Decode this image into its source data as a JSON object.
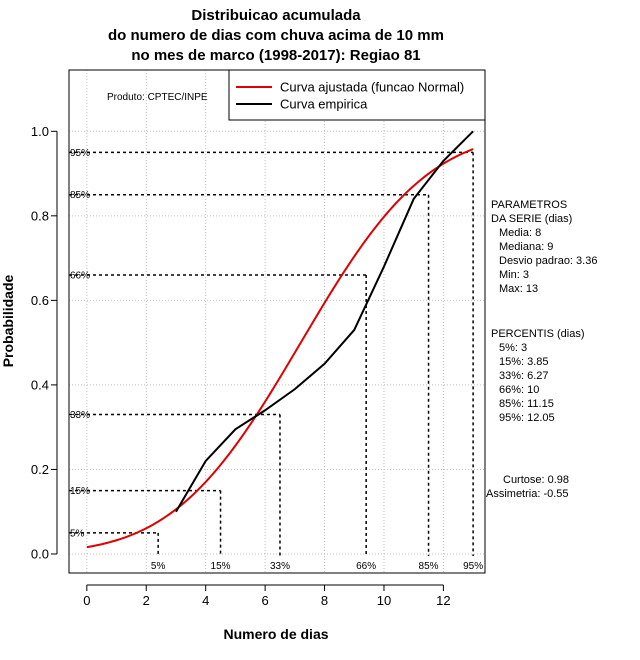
{
  "chart_data": {
    "type": "line",
    "title_lines": [
      "Distribuicao acumulada",
      "do numero de dias com chuva acima de 10 mm",
      "no mes de marco (1998-2017): Regiao 81"
    ],
    "xlabel": "Numero de dias",
    "ylabel": "Probabilidade",
    "xlim": [
      -0.6,
      13.4
    ],
    "ylim": [
      -0.045,
      1.145
    ],
    "xticks": [
      0,
      2,
      4,
      6,
      8,
      10,
      12
    ],
    "yticks": [
      0.0,
      0.2,
      0.4,
      0.6,
      0.8,
      1.0
    ],
    "product_label": "Produto: CPTEC/INPE",
    "grid": true,
    "legend_position": "top-right",
    "legend": [
      {
        "label": "Curva ajustada (funcao Normal)",
        "color": "#e00000"
      },
      {
        "label": "Curva empirica",
        "color": "#000000"
      }
    ],
    "fitted_curve": {
      "name": "Curva ajustada (funcao Normal)",
      "color": "#e00000",
      "mean": 7.2,
      "sd": 3.36,
      "x_start": 0,
      "x_end": 13
    },
    "empirical_curve": {
      "name": "Curva empirica",
      "color": "#000000",
      "x": [
        3,
        4,
        5,
        6,
        7,
        8,
        9,
        10,
        11,
        12,
        13
      ],
      "y": [
        0.1,
        0.22,
        0.295,
        0.34,
        0.39,
        0.45,
        0.53,
        0.68,
        0.84,
        0.93,
        1.0
      ]
    },
    "percentile_lines": [
      {
        "label": "5%",
        "x": 2.4,
        "y": 0.05
      },
      {
        "label": "15%",
        "x": 4.5,
        "y": 0.15
      },
      {
        "label": "33%",
        "x": 6.5,
        "y": 0.33
      },
      {
        "label": "66%",
        "x": 9.4,
        "y": 0.66
      },
      {
        "label": "85%",
        "x": 11.5,
        "y": 0.85
      },
      {
        "label": "95%",
        "x": 13.0,
        "y": 0.95
      }
    ],
    "parameters": {
      "header": [
        "PARAMETROS",
        "DA SERIE (dias)"
      ],
      "items": [
        "Media: 8",
        "Mediana: 9",
        "Desvio padrao: 3.36",
        "Min: 3",
        "Max: 13"
      ]
    },
    "percentis": {
      "header": "PERCENTIS (dias)",
      "items": [
        "5%: 3",
        "15%: 3.85",
        "33%: 6.27",
        "66%: 10",
        "85%: 11.15",
        "95%: 12.05"
      ]
    },
    "stats": [
      "Curtose: 0.98",
      "Assimetria: -0.55"
    ]
  }
}
